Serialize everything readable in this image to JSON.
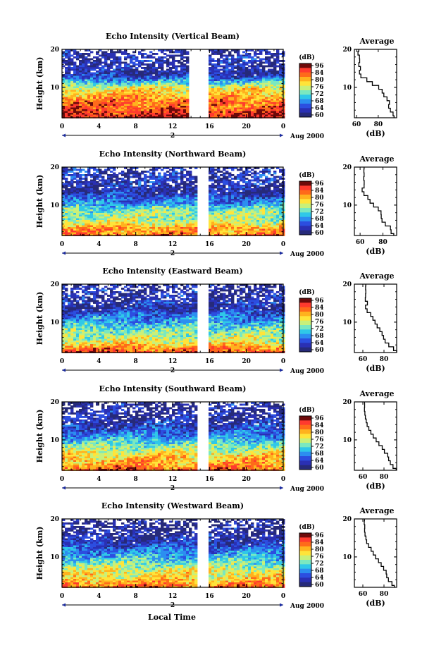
{
  "figure": {
    "xlabel": "Local Time",
    "date_label": "Aug 2000",
    "day_label": "2",
    "unit_label": "(dB)",
    "avg_title": "Average",
    "avg_xlabel": "(dB)"
  },
  "colorscale": {
    "tick_labels": [
      "96",
      "84",
      "80",
      "76",
      "72",
      "68",
      "64",
      "60"
    ],
    "colors": [
      "#6e0a0a",
      "#ff3a2e",
      "#ff6a1a",
      "#ffb21e",
      "#ffe43a",
      "#c8f07a",
      "#7ae8c0",
      "#2fc8e8",
      "#2c8ef0",
      "#2c4ee0",
      "#2a30b4",
      "#262a7a"
    ]
  },
  "chart_data": [
    {
      "type": "heatmap",
      "title": "Echo Intensity (Vertical Beam)",
      "ylabel": "Height (km)",
      "x_ticks": [
        "0",
        "4",
        "8",
        "12",
        "16",
        "20",
        "0"
      ],
      "y_ticks": [
        "20",
        "10"
      ],
      "ylim": [
        2,
        20
      ],
      "xlim": [
        0,
        24
      ],
      "gap_hours": [
        14.0,
        15.6
      ],
      "profile": [
        [
          2,
          94.6
        ],
        [
          3,
          93.7
        ],
        [
          4,
          91.2
        ],
        [
          5,
          89.6
        ],
        [
          6,
          90.3
        ],
        [
          7,
          88.1
        ],
        [
          8,
          85.2
        ],
        [
          9,
          83.6
        ],
        [
          10,
          80.4
        ],
        [
          11,
          74.6
        ],
        [
          12,
          69.5
        ],
        [
          13,
          64.0
        ],
        [
          14,
          62.7
        ],
        [
          15,
          63.6
        ],
        [
          16,
          62.1
        ],
        [
          17,
          62.9
        ],
        [
          18,
          62.7
        ],
        [
          19,
          61.3
        ],
        [
          20,
          62.1
        ]
      ],
      "avg_ticks": [
        "60",
        "80"
      ],
      "avg_xlim": [
        58,
        97
      ]
    },
    {
      "type": "heatmap",
      "title": "Echo Intensity (Northward Beam)",
      "ylabel": "Height (km)",
      "x_ticks": [
        "0",
        "4",
        "8",
        "12",
        "16",
        "20",
        "0"
      ],
      "y_ticks": [
        "20",
        "10"
      ],
      "ylim": [
        2,
        20
      ],
      "xlim": [
        0,
        24
      ],
      "gap_hours": [
        14.8,
        15.6
      ],
      "profile": [
        [
          2,
          89.5
        ],
        [
          3,
          87.1
        ],
        [
          4,
          86.6
        ],
        [
          5,
          82.1
        ],
        [
          6,
          79.2
        ],
        [
          7,
          78.5
        ],
        [
          8,
          78.3
        ],
        [
          9,
          75.9
        ],
        [
          10,
          71.8
        ],
        [
          11,
          68.7
        ],
        [
          12,
          66.8
        ],
        [
          13,
          63.4
        ],
        [
          14,
          61.8
        ],
        [
          15,
          63.5
        ],
        [
          16,
          63.6
        ],
        [
          17,
          63.2
        ],
        [
          18,
          63.5
        ],
        [
          19,
          63.3
        ],
        [
          20,
          63.5
        ]
      ],
      "avg_ticks": [
        "60",
        "80"
      ],
      "avg_xlim": [
        55,
        92
      ]
    },
    {
      "type": "heatmap",
      "title": "Echo Intensity (Eastward Beam)",
      "ylabel": "Height (km)",
      "x_ticks": [
        "0",
        "4",
        "8",
        "12",
        "16",
        "20",
        "0"
      ],
      "y_ticks": [
        "20",
        "10"
      ],
      "ylim": [
        2,
        20
      ],
      "xlim": [
        0,
        24
      ],
      "gap_hours": [
        14.8,
        15.6
      ],
      "profile": [
        [
          2,
          92.0
        ],
        [
          3,
          89.1
        ],
        [
          4,
          84.5
        ],
        [
          5,
          81.1
        ],
        [
          6,
          79.6
        ],
        [
          7,
          78.2
        ],
        [
          8,
          76.1
        ],
        [
          9,
          73.5
        ],
        [
          10,
          71.5
        ],
        [
          11,
          69.5
        ],
        [
          12,
          67.4
        ],
        [
          13,
          64.1
        ],
        [
          14,
          62.5
        ],
        [
          15,
          64.3
        ],
        [
          16,
          62.3
        ],
        [
          17,
          62.6
        ],
        [
          18,
          62.8
        ],
        [
          19,
          62.6
        ],
        [
          20,
          62.8
        ]
      ],
      "avg_ticks": [
        "60",
        "80"
      ],
      "avg_xlim": [
        52,
        92
      ]
    },
    {
      "type": "heatmap",
      "title": "Echo Intensity (Southward Beam)",
      "ylabel": "Height (km)",
      "x_ticks": [
        "0",
        "4",
        "8",
        "12",
        "16",
        "20",
        "0"
      ],
      "y_ticks": [
        "20",
        "10"
      ],
      "ylim": [
        2,
        20
      ],
      "xlim": [
        0,
        24
      ],
      "gap_hours": [
        14.8,
        15.6
      ],
      "profile": [
        [
          2,
          91.5
        ],
        [
          3,
          88.5
        ],
        [
          4,
          86.0
        ],
        [
          5,
          84.4
        ],
        [
          6,
          83.5
        ],
        [
          7,
          80.4
        ],
        [
          8,
          78.3
        ],
        [
          9,
          75.2
        ],
        [
          10,
          72.6
        ],
        [
          11,
          69.8
        ],
        [
          12,
          67.6
        ],
        [
          13,
          65.7
        ],
        [
          14,
          64.1
        ],
        [
          15,
          63.2
        ],
        [
          16,
          62.4
        ],
        [
          17,
          61.9
        ],
        [
          18,
          61.5
        ],
        [
          19,
          61.7
        ],
        [
          20,
          61.6
        ]
      ],
      "avg_ticks": [
        "60",
        "80"
      ],
      "avg_xlim": [
        52,
        92
      ]
    },
    {
      "type": "heatmap",
      "title": "Echo Intensity (Westward Beam)",
      "ylabel": "Height (km)",
      "x_ticks": [
        "0",
        "4",
        "8",
        "12",
        "16",
        "20",
        "0"
      ],
      "y_ticks": [
        "20",
        "10"
      ],
      "ylim": [
        2,
        20
      ],
      "xlim": [
        0,
        24
      ],
      "gap_hours": [
        14.8,
        15.6
      ],
      "profile": [
        [
          2,
          89.8
        ],
        [
          3,
          87.5
        ],
        [
          4,
          84.2
        ],
        [
          5,
          82.6
        ],
        [
          6,
          82.1
        ],
        [
          7,
          79.7
        ],
        [
          8,
          77.3
        ],
        [
          9,
          74.8
        ],
        [
          10,
          72.1
        ],
        [
          11,
          69.8
        ],
        [
          12,
          67.8
        ],
        [
          13,
          65.4
        ],
        [
          14,
          63.6
        ],
        [
          15,
          62.9
        ],
        [
          16,
          62.1
        ],
        [
          17,
          61.7
        ],
        [
          18,
          61.8
        ],
        [
          19,
          61.3
        ],
        [
          20,
          61.5
        ]
      ],
      "avg_ticks": [
        "60",
        "80"
      ],
      "avg_xlim": [
        52,
        92
      ]
    }
  ]
}
